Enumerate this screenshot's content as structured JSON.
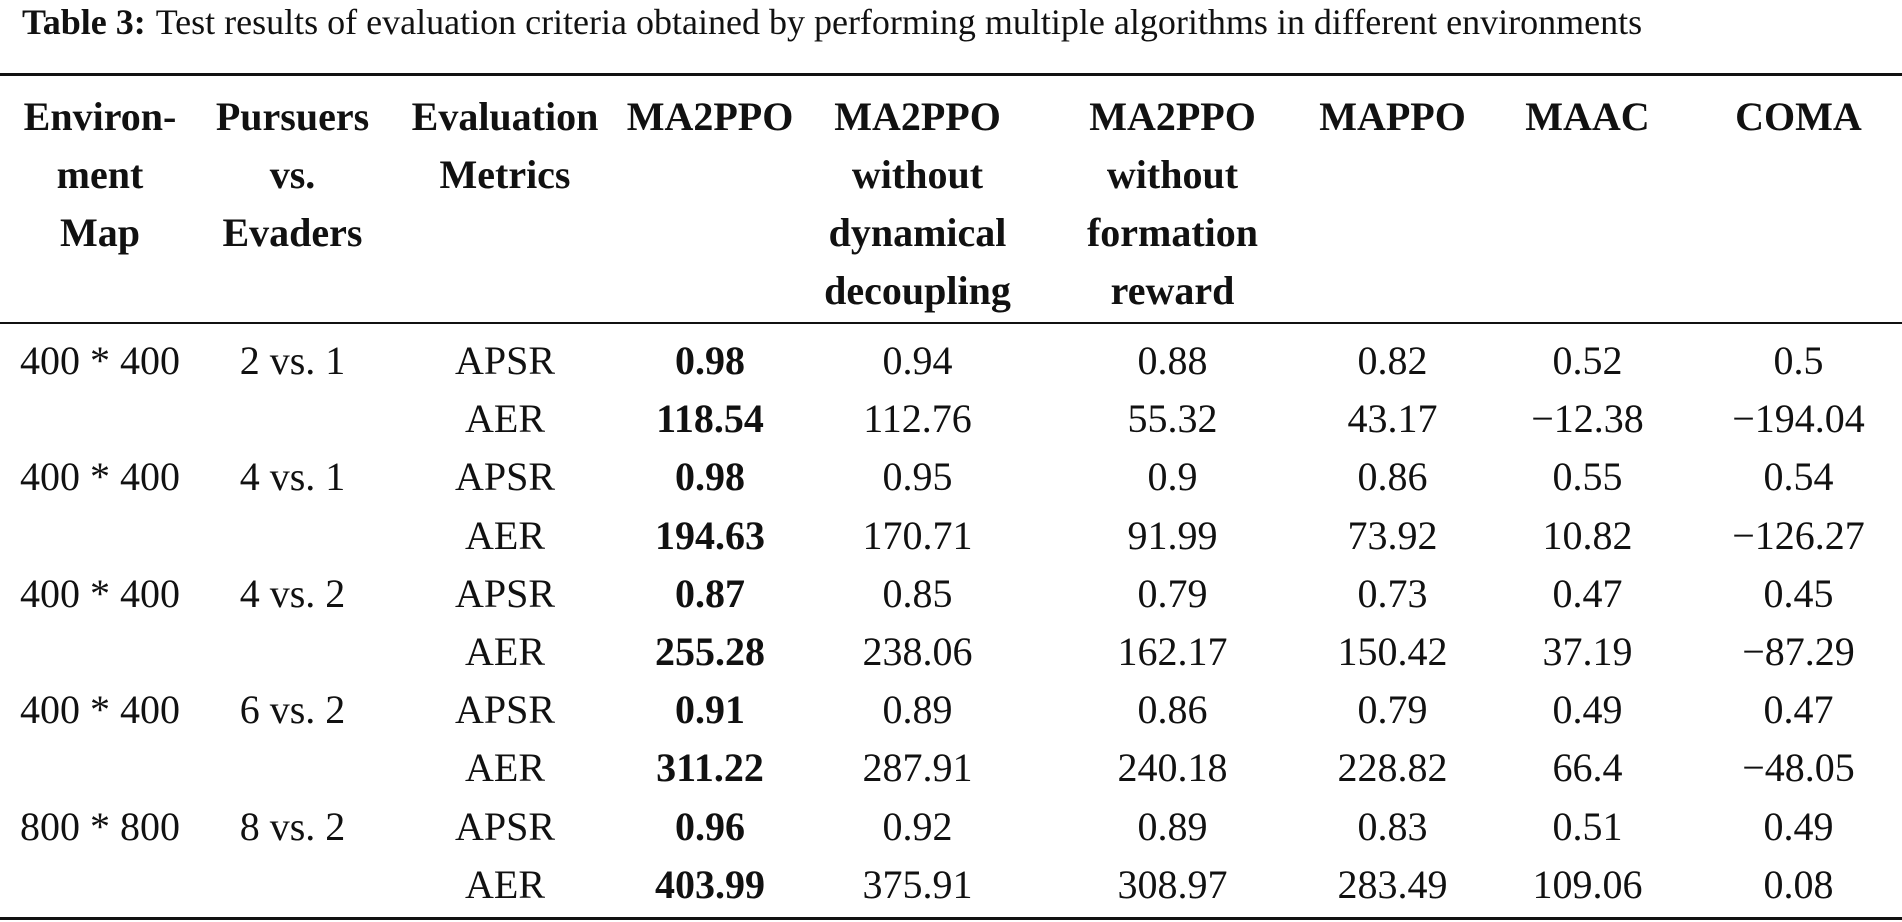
{
  "caption": {
    "label": "Table 3:",
    "text": "Test results of evaluation criteria obtained by performing multiple algorithms in different environments"
  },
  "columns": [
    {
      "lines": [
        "Environ-",
        "ment",
        "Map"
      ]
    },
    {
      "lines": [
        "Pursuers",
        "vs.",
        "Evaders"
      ]
    },
    {
      "lines": [
        "Evaluation",
        "Metrics"
      ]
    },
    {
      "lines": [
        "MA2PPO"
      ]
    },
    {
      "lines": [
        "MA2PPO",
        "without",
        "dynamical",
        "decoupling"
      ]
    },
    {
      "lines": [
        "MA2PPO",
        "without",
        "formation",
        "reward"
      ]
    },
    {
      "lines": [
        "MAPPO"
      ]
    },
    {
      "lines": [
        "MAAC"
      ]
    },
    {
      "lines": [
        "COMA"
      ]
    }
  ],
  "rows": [
    {
      "env": "400 * 400",
      "pve": "2 vs. 1",
      "metric": "APSR",
      "values": [
        "0.98",
        "0.94",
        "0.88",
        "0.82",
        "0.52",
        "0.5"
      ]
    },
    {
      "env": "",
      "pve": "",
      "metric": "AER",
      "values": [
        "118.54",
        "112.76",
        "55.32",
        "43.17",
        "−12.38",
        "−194.04"
      ]
    },
    {
      "env": "400 * 400",
      "pve": "4 vs. 1",
      "metric": "APSR",
      "values": [
        "0.98",
        "0.95",
        "0.9",
        "0.86",
        "0.55",
        "0.54"
      ]
    },
    {
      "env": "",
      "pve": "",
      "metric": "AER",
      "values": [
        "194.63",
        "170.71",
        "91.99",
        "73.92",
        "10.82",
        "−126.27"
      ]
    },
    {
      "env": "400 * 400",
      "pve": "4 vs. 2",
      "metric": "APSR",
      "values": [
        "0.87",
        "0.85",
        "0.79",
        "0.73",
        "0.47",
        "0.45"
      ]
    },
    {
      "env": "",
      "pve": "",
      "metric": "AER",
      "values": [
        "255.28",
        "238.06",
        "162.17",
        "150.42",
        "37.19",
        "−87.29"
      ]
    },
    {
      "env": "400 * 400",
      "pve": "6 vs. 2",
      "metric": "APSR",
      "values": [
        "0.91",
        "0.89",
        "0.86",
        "0.79",
        "0.49",
        "0.47"
      ]
    },
    {
      "env": "",
      "pve": "",
      "metric": "AER",
      "values": [
        "311.22",
        "287.91",
        "240.18",
        "228.82",
        "66.4",
        "−48.05"
      ]
    },
    {
      "env": "800 * 800",
      "pve": "8 vs. 2",
      "metric": "APSR",
      "values": [
        "0.96",
        "0.92",
        "0.89",
        "0.83",
        "0.51",
        "0.49"
      ]
    },
    {
      "env": "",
      "pve": "",
      "metric": "AER",
      "values": [
        "403.99",
        "375.91",
        "308.97",
        "283.49",
        "109.06",
        "0.08"
      ]
    }
  ]
}
